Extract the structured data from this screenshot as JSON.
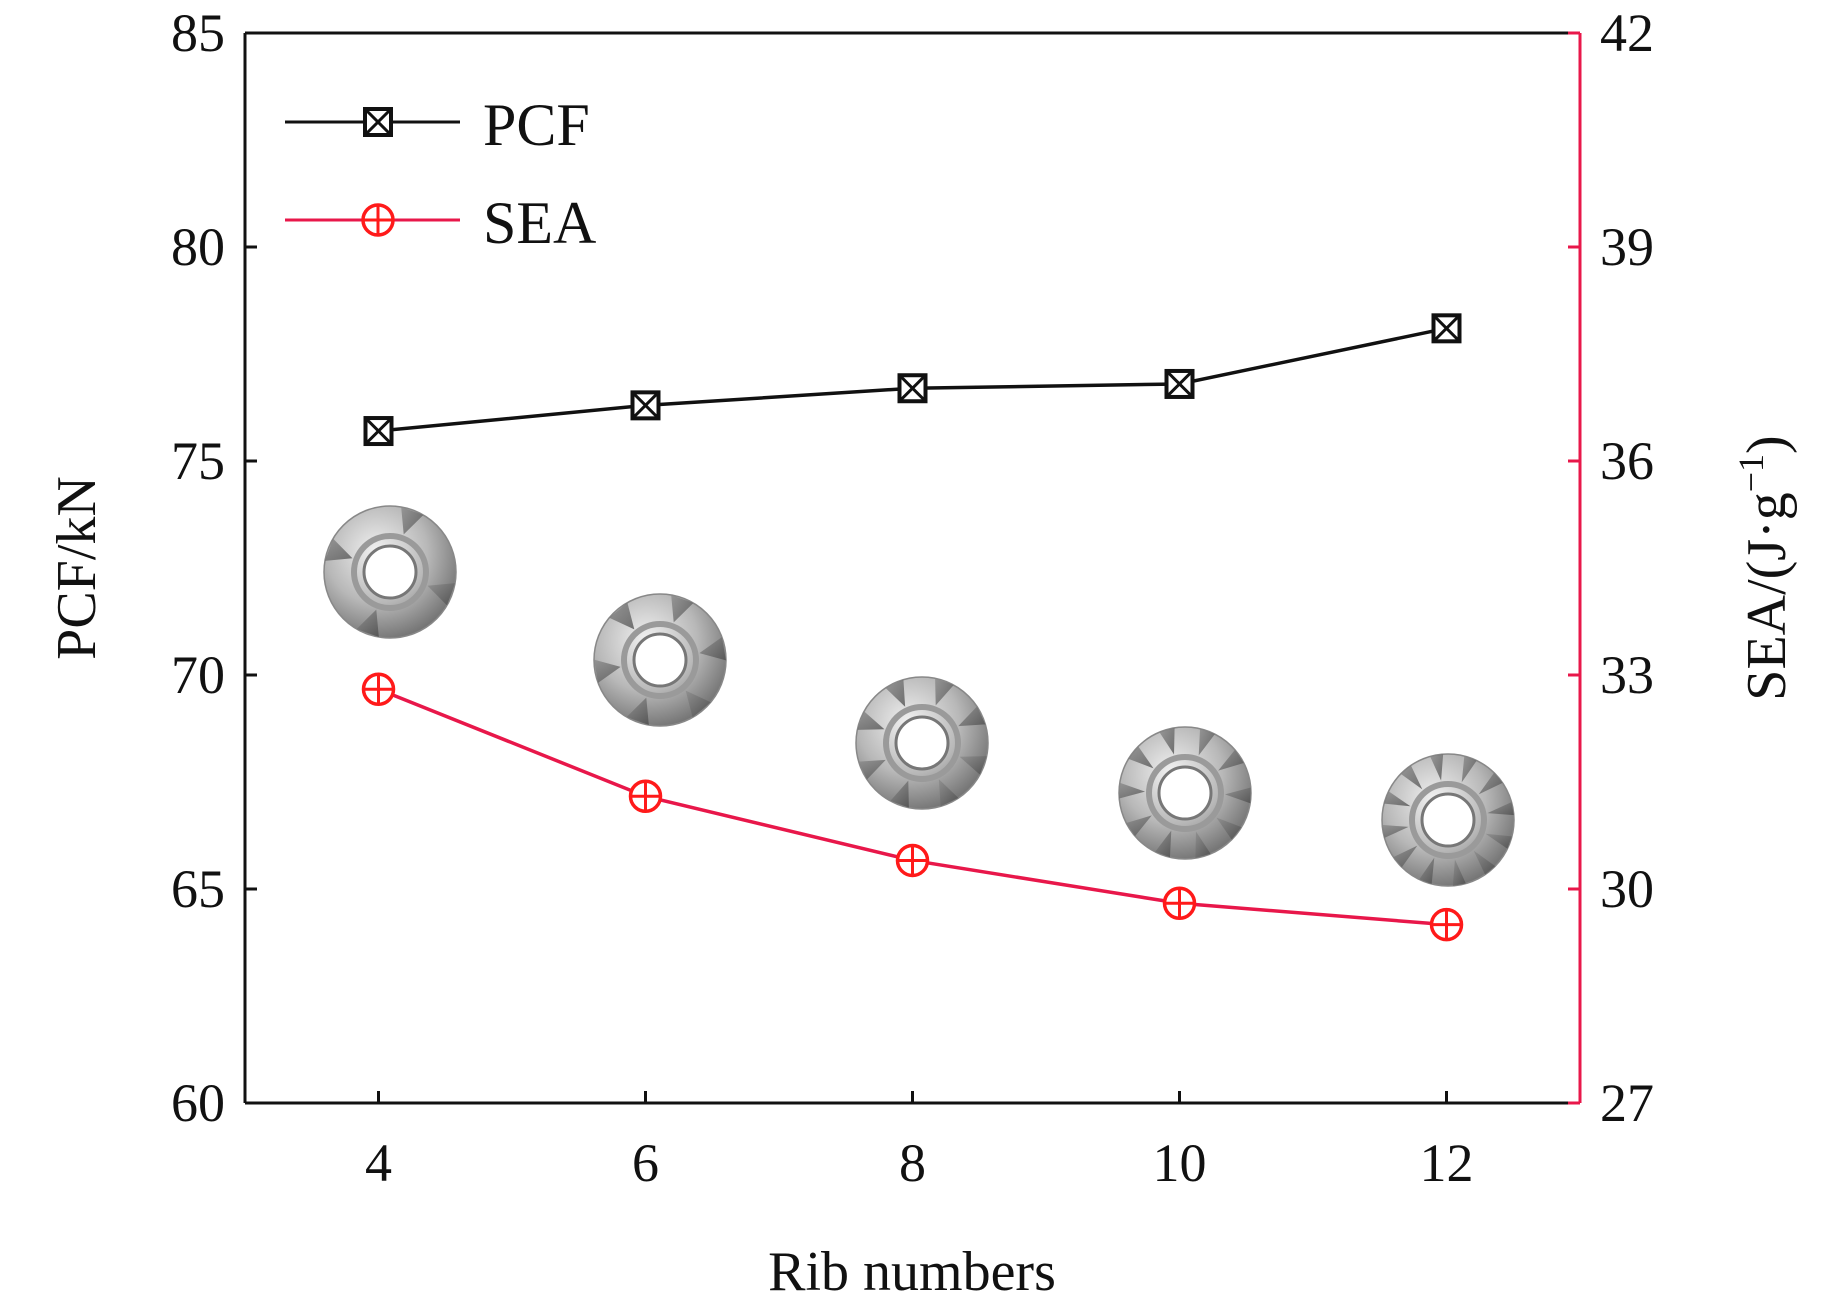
{
  "chart_data": {
    "type": "line",
    "title": "",
    "xlabel": "Rib numbers",
    "ylabel_left": "PCF/kN",
    "ylabel_right": {
      "main": "SEA/(J·g",
      "sup": "−1",
      "tail": ")"
    },
    "x": [
      4,
      6,
      8,
      10,
      12
    ],
    "xlim": [
      3,
      13
    ],
    "xticks": [
      "4",
      "6",
      "8",
      "10",
      "12"
    ],
    "ylim_left": [
      60,
      85
    ],
    "yticks_left": [
      "60",
      "65",
      "70",
      "75",
      "80",
      "85"
    ],
    "ylim_right": [
      27,
      42
    ],
    "yticks_right": [
      "27",
      "30",
      "33",
      "36",
      "39",
      "42"
    ],
    "grid": false,
    "legend_position": "top-left",
    "series": [
      {
        "name": "PCF",
        "axis": "left",
        "values": [
          75.7,
          76.3,
          76.7,
          76.8,
          78.1
        ],
        "color": "#111111",
        "marker": "square-x"
      },
      {
        "name": "SEA",
        "axis": "right",
        "values": [
          32.8,
          31.3,
          30.4,
          29.8,
          29.5
        ],
        "color": "#e8174a",
        "marker_color": "#ff1a1a",
        "marker": "circle-plus"
      }
    ],
    "insets": [
      {
        "icon": "ribbed-tube-cross-section-icon",
        "x": 4,
        "ribs": 4
      },
      {
        "icon": "ribbed-tube-cross-section-icon",
        "x": 6,
        "ribs": 6
      },
      {
        "icon": "ribbed-tube-cross-section-icon",
        "x": 8,
        "ribs": 8
      },
      {
        "icon": "ribbed-tube-cross-section-icon",
        "x": 10,
        "ribs": 10
      },
      {
        "icon": "ribbed-tube-cross-section-icon",
        "x": 12,
        "ribs": 12
      }
    ]
  }
}
